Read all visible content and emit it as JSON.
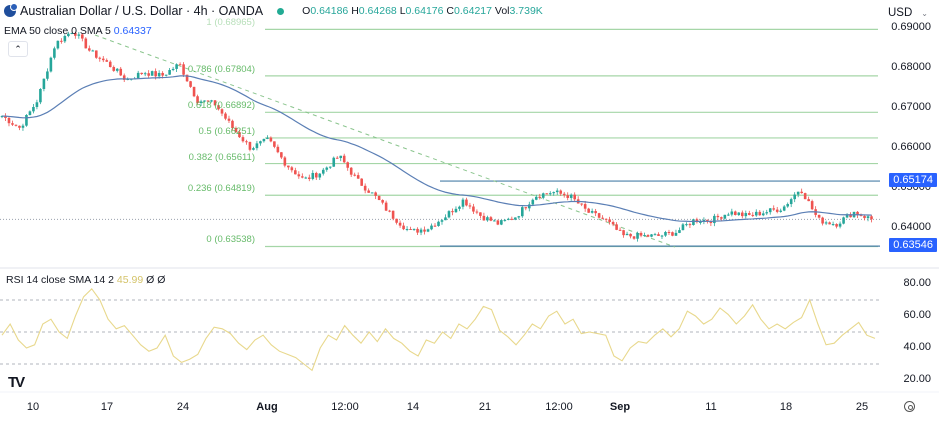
{
  "header": {
    "symbol_title": "Australian Dollar / U.S. Dollar · 4h · OANDA",
    "ohlc": {
      "open_label": "O",
      "open": "0.64186",
      "high_label": "H",
      "high": "0.64268",
      "low_label": "L",
      "low": "0.64176",
      "close_label": "C",
      "close": "0.64217",
      "vol_label": "Vol",
      "vol": "3.739K"
    },
    "currency_button": "USD",
    "collapse_icon": "chevron-up-icon"
  },
  "indicators": {
    "ema": {
      "label": "EMA 50 close 0 SMA 5",
      "value": "0.64337"
    },
    "rsi": {
      "label": "RSI 14 close SMA 14 2",
      "value": "45.99",
      "extra1": "Ø",
      "extra2": "Ø"
    }
  },
  "price_axis": {
    "labels": [
      "0.69000",
      "0.68000",
      "0.67000",
      "0.66000",
      "0.65000",
      "0.64000"
    ],
    "tags": [
      {
        "value": "0.65174",
        "color": "#2962ff"
      },
      {
        "value": "0.63546",
        "color": "#2962ff"
      }
    ]
  },
  "rsi_axis": {
    "labels": [
      "80.00",
      "60.00",
      "40.00",
      "20.00"
    ]
  },
  "time_axis": {
    "labels": [
      {
        "text": "10",
        "bold": false
      },
      {
        "text": "17",
        "bold": false
      },
      {
        "text": "24",
        "bold": false
      },
      {
        "text": "Aug",
        "bold": true
      },
      {
        "text": "12:00",
        "bold": false
      },
      {
        "text": "14",
        "bold": false
      },
      {
        "text": "21",
        "bold": false
      },
      {
        "text": "12:00",
        "bold": false
      },
      {
        "text": "Sep",
        "bold": true
      },
      {
        "text": "11",
        "bold": false
      },
      {
        "text": "18",
        "bold": false
      },
      {
        "text": "25",
        "bold": false
      }
    ]
  },
  "fibonacci": [
    {
      "level": "1",
      "price": "0.68965",
      "label": "1 (0.68965)"
    },
    {
      "level": "0.786",
      "price": "0.67804",
      "label": "0.786 (0.67804)"
    },
    {
      "level": "0.618",
      "price": "0.66892",
      "label": "0.618 (0.66892)"
    },
    {
      "level": "0.5",
      "price": "0.66251",
      "label": "0.5 (0.66251)"
    },
    {
      "level": "0.382",
      "price": "0.65611",
      "label": "0.382 (0.65611)"
    },
    {
      "level": "0.236",
      "price": "0.64819",
      "label": "0.236 (0.64819)"
    },
    {
      "level": "0",
      "price": "0.63538",
      "label": "0 (0.63538)"
    }
  ],
  "branding": {
    "logo": "TV"
  },
  "colors": {
    "up": "#26a69a",
    "down": "#ef5350",
    "ema": "#5b7fb5",
    "fib": "#a5d6a7",
    "rsi": "#e8d88c",
    "tag": "#2962ff",
    "hline": "#4a7fa8"
  },
  "chart_data": {
    "type": "candlestick",
    "title": "Australian Dollar / U.S. Dollar · 4h · OANDA",
    "xlabel": "",
    "ylabel": "USD",
    "ylim": [
      0.633,
      0.6905
    ],
    "x_ticks": [
      "10",
      "17",
      "24",
      "Aug",
      "12:00",
      "14",
      "21",
      "12:00",
      "Sep",
      "11",
      "18",
      "25"
    ],
    "price_path": [
      {
        "x": "Jul 10",
        "close": 0.668
      },
      {
        "x": "Jul 12",
        "close": 0.665
      },
      {
        "x": "Jul 13",
        "close": 0.672
      },
      {
        "x": "Jul 14",
        "close": 0.686
      },
      {
        "x": "Jul 15",
        "close": 0.6895
      },
      {
        "x": "Jul 17",
        "close": 0.684
      },
      {
        "x": "Jul 20",
        "close": 0.681
      },
      {
        "x": "Jul 21",
        "close": 0.677
      },
      {
        "x": "Jul 24",
        "close": 0.679
      },
      {
        "x": "Jul 26",
        "close": 0.678
      },
      {
        "x": "Jul 27",
        "close": 0.681
      },
      {
        "x": "Jul 28",
        "close": 0.672
      },
      {
        "x": "Jul 31",
        "close": 0.671
      },
      {
        "x": "Aug 1",
        "close": 0.665
      },
      {
        "x": "Aug 2",
        "close": 0.66
      },
      {
        "x": "Aug 4",
        "close": 0.662
      },
      {
        "x": "Aug 7",
        "close": 0.656
      },
      {
        "x": "Aug 8",
        "close": 0.652
      },
      {
        "x": "Aug 9",
        "close": 0.654
      },
      {
        "x": "Aug 10",
        "close": 0.658
      },
      {
        "x": "Aug 11",
        "close": 0.652
      },
      {
        "x": "Aug 14",
        "close": 0.648
      },
      {
        "x": "Aug 15",
        "close": 0.643
      },
      {
        "x": "Aug 17",
        "close": 0.639
      },
      {
        "x": "Aug 18",
        "close": 0.64
      },
      {
        "x": "Aug 21",
        "close": 0.643
      },
      {
        "x": "Aug 23",
        "close": 0.647
      },
      {
        "x": "Aug 24",
        "close": 0.643
      },
      {
        "x": "Aug 25",
        "close": 0.641
      },
      {
        "x": "Aug 28",
        "close": 0.643
      },
      {
        "x": "Aug 29",
        "close": 0.648
      },
      {
        "x": "Aug 30",
        "close": 0.649
      },
      {
        "x": "Aug 31",
        "close": 0.648
      },
      {
        "x": "Sep 1",
        "close": 0.644
      },
      {
        "x": "Sep 4",
        "close": 0.642
      },
      {
        "x": "Sep 5",
        "close": 0.638
      },
      {
        "x": "Sep 6",
        "close": 0.638
      },
      {
        "x": "Sep 7",
        "close": 0.638
      },
      {
        "x": "Sep 8",
        "close": 0.639
      },
      {
        "x": "Sep 11",
        "close": 0.642
      },
      {
        "x": "Sep 12",
        "close": 0.642
      },
      {
        "x": "Sep 14",
        "close": 0.644
      },
      {
        "x": "Sep 15",
        "close": 0.643
      },
      {
        "x": "Sep 18",
        "close": 0.644
      },
      {
        "x": "Sep 19",
        "close": 0.645
      },
      {
        "x": "Sep 20",
        "close": 0.65
      },
      {
        "x": "Sep 21",
        "close": 0.642
      },
      {
        "x": "Sep 22",
        "close": 0.641
      },
      {
        "x": "Sep 25",
        "close": 0.644
      },
      {
        "x": "Sep 26",
        "close": 0.6422
      }
    ],
    "ema50_last": 0.64337,
    "horizontal_levels": [
      0.65174,
      0.63546
    ],
    "fibonacci_levels": {
      "1": 0.68965,
      "0.786": 0.67804,
      "0.618": 0.66892,
      "0.5": 0.66251,
      "0.382": 0.65611,
      "0.236": 0.64819,
      "0": 0.63538
    },
    "rsi": {
      "period": 14,
      "last": 45.99,
      "ylim": [
        15,
        85
      ],
      "bands": [
        70,
        50,
        30
      ],
      "values": [
        48,
        55,
        45,
        40,
        42,
        55,
        58,
        50,
        46,
        60,
        72,
        77,
        70,
        58,
        52,
        54,
        48,
        42,
        38,
        40,
        48,
        35,
        31,
        33,
        36,
        46,
        53,
        52,
        49,
        43,
        39,
        45,
        48,
        42,
        38,
        36,
        34,
        30,
        26,
        40,
        48,
        45,
        54,
        48,
        43,
        50,
        44,
        52,
        46,
        43,
        38,
        35,
        45,
        43,
        50,
        46,
        55,
        52,
        58,
        66,
        64,
        51,
        47,
        42,
        48,
        55,
        52,
        60,
        63,
        55,
        58,
        49,
        50,
        49,
        48,
        35,
        32,
        40,
        44,
        43,
        48,
        52,
        47,
        52,
        63,
        60,
        55,
        58,
        65,
        61,
        55,
        60,
        67,
        58,
        52,
        55,
        52,
        56,
        59,
        70,
        55,
        42,
        43,
        48,
        52,
        56,
        48,
        46
      ]
    }
  }
}
